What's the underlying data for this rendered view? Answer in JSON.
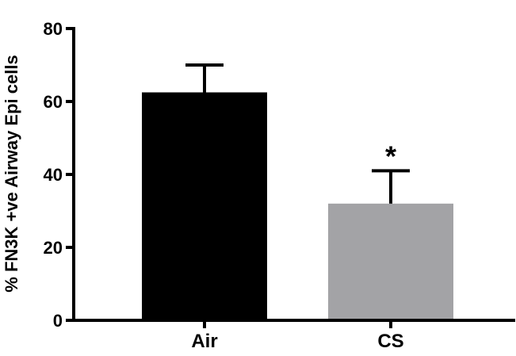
{
  "chart_data": {
    "type": "bar",
    "categories": [
      "Air",
      "CS"
    ],
    "values": [
      62.5,
      32
    ],
    "error_plus": [
      7.5,
      9
    ],
    "ylabel": "% FN3K +ve Airway Epi cells",
    "xlabel": "",
    "ylim": [
      0,
      80
    ],
    "yticks": [
      0,
      20,
      40,
      60,
      80
    ],
    "bar_colors": [
      "#000000",
      "#a3a3a6"
    ],
    "axis_color": "#000000",
    "grid": false,
    "annotations": [
      {
        "category": "CS",
        "text": "*"
      }
    ]
  }
}
